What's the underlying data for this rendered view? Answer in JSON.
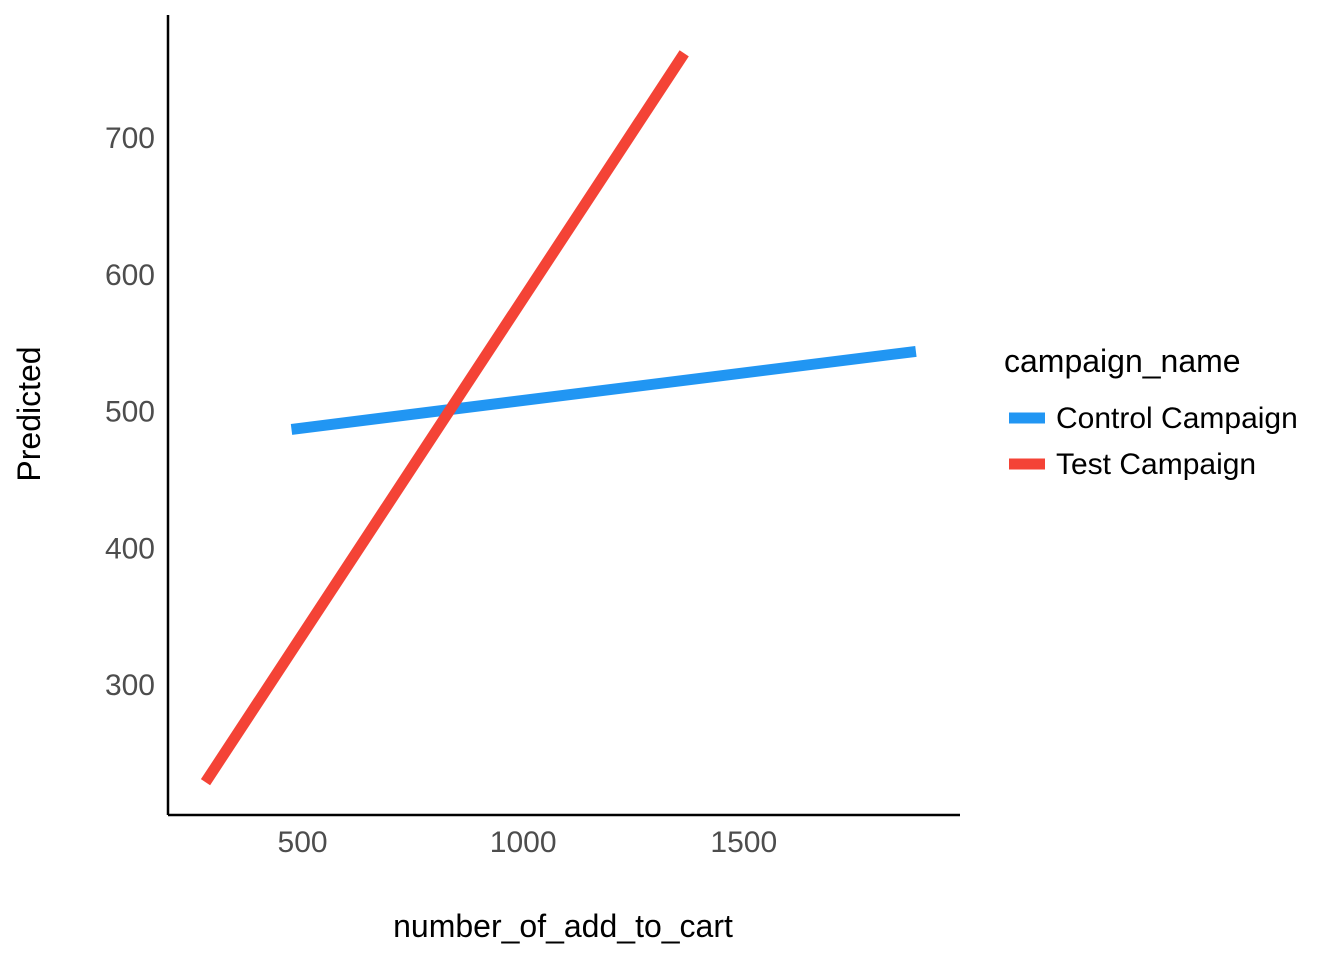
{
  "chart_data": {
    "type": "line",
    "title": "",
    "xlabel": "number_of_add_to_cart",
    "ylabel": "Predicted",
    "xlim": [
      195,
      1990
    ],
    "ylim": [
      205,
      790
    ],
    "x_ticks": [
      "500",
      "1000",
      "1500"
    ],
    "x_tick_values": [
      500,
      1000,
      1500
    ],
    "y_ticks": [
      "300",
      "400",
      "500",
      "600",
      "700"
    ],
    "y_tick_values": [
      300,
      400,
      500,
      600,
      700
    ],
    "grid": false,
    "legend": {
      "title": "campaign_name",
      "placement": "right"
    },
    "series": [
      {
        "name": "Control Campaign",
        "color": "#2196F3",
        "x": [
          475,
          1890
        ],
        "y": [
          487,
          544
        ]
      },
      {
        "name": "Test Campaign",
        "color": "#F44336",
        "x": [
          280,
          1365
        ],
        "y": [
          229,
          762
        ]
      }
    ]
  }
}
